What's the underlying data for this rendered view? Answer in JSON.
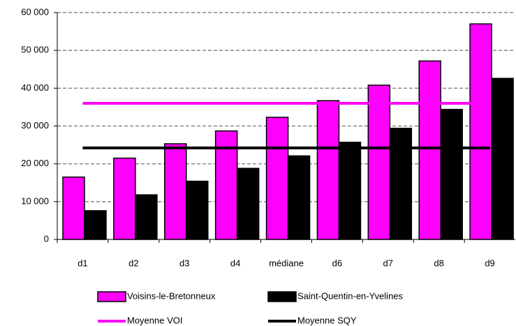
{
  "chart_data": {
    "type": "bar",
    "categories": [
      "d1",
      "d2",
      "d3",
      "d4",
      "médiane",
      "d6",
      "d7",
      "d8",
      "d9"
    ],
    "series": [
      {
        "name": "Voisins-le-Bretonneux",
        "color": "#ff00ff",
        "values": [
          16500,
          21500,
          25300,
          28700,
          32300,
          36700,
          40800,
          47200,
          57000
        ]
      },
      {
        "name": "Saint-Quentin-en-Yvelines",
        "color": "#000000",
        "values": [
          7600,
          11800,
          15400,
          18800,
          22100,
          25700,
          29400,
          34400,
          42600
        ]
      },
      {
        "name": "Moyenne VOI",
        "type": "line",
        "color": "#ff00ff",
        "values": [
          36000,
          36000,
          36000,
          36000,
          36000,
          36000,
          36000,
          36000,
          36000
        ]
      },
      {
        "name": "Moyenne SQY",
        "type": "line",
        "color": "#000000",
        "values": [
          24200,
          24200,
          24200,
          24200,
          24200,
          24200,
          24200,
          24200,
          24200
        ]
      }
    ],
    "ylim": [
      0,
      60000
    ],
    "yticks": [
      {
        "value": 0,
        "label": "0"
      },
      {
        "value": 10000,
        "label": "10 000"
      },
      {
        "value": 20000,
        "label": "20 000"
      },
      {
        "value": 30000,
        "label": "30 000"
      },
      {
        "value": 40000,
        "label": "40 000"
      },
      {
        "value": 50000,
        "label": "50 000"
      },
      {
        "value": 60000,
        "label": "60 000"
      }
    ],
    "grid": true,
    "legend": "bottom"
  }
}
